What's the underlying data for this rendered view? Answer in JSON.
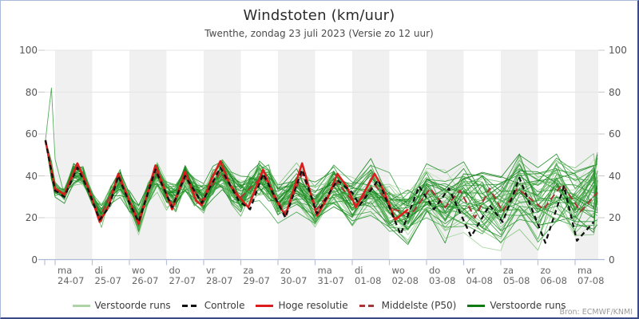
{
  "header": {
    "title": "Windstoten (km/uur)",
    "subtitle": "Twenthe, zondag 23 juli 2023 (Versie zo 12 uur)"
  },
  "source_label": "Bron: ECMWF/KNMI",
  "colors": {
    "band": "#f0f0f0",
    "grid": "#e4e4e4",
    "axis": "#aebad6",
    "tick": "#b8c2da",
    "ytick": "#c9c9c9",
    "control": "#111111",
    "hres": "#dd1d1d",
    "p50": "#a93535",
    "green_light_legend": "#aed3a5",
    "green_dark_legend": "#107a12"
  },
  "legend": [
    {
      "label": "Verstoorde runs",
      "color": "#aed3a5",
      "style": "solid"
    },
    {
      "label": "Controle",
      "color": "#111111",
      "style": "dashed"
    },
    {
      "label": "Hoge resolutie",
      "color": "#dd1d1d",
      "style": "solid"
    },
    {
      "label": "Middelste (P50)",
      "color": "#a93535",
      "style": "dashed"
    },
    {
      "label": "Verstoorde runs",
      "color": "#107a12",
      "style": "solid"
    }
  ],
  "chart_data": {
    "type": "line",
    "title": "Windstoten (km/uur)",
    "subtitle": "Twenthe, zondag 23 juli 2023 (Versie zo 12 uur)",
    "ylabel": "",
    "ylim": [
      0,
      100
    ],
    "yticks": [
      0,
      20,
      40,
      60,
      80,
      100
    ],
    "grid": true,
    "legend_position": "bottom",
    "x_axis": {
      "unit": "days from 24-07 00:00, forecast start 23-07 ~18:00",
      "tick_labels": [
        {
          "dow": "ma",
          "date": "24-07"
        },
        {
          "dow": "di",
          "date": "25-07"
        },
        {
          "dow": "wo",
          "date": "26-07"
        },
        {
          "dow": "do",
          "date": "27-07"
        },
        {
          "dow": "vr",
          "date": "28-07"
        },
        {
          "dow": "za",
          "date": "29-07"
        },
        {
          "dow": "zo",
          "date": "30-07"
        },
        {
          "dow": "ma",
          "date": "31-07"
        },
        {
          "dow": "di",
          "date": "01-08"
        },
        {
          "dow": "wo",
          "date": "02-08"
        },
        {
          "dow": "do",
          "date": "03-08"
        },
        {
          "dow": "vr",
          "date": "04-08"
        },
        {
          "dow": "za",
          "date": "05-08"
        },
        {
          "dow": "zo",
          "date": "06-08"
        },
        {
          "dow": "ma",
          "date": "07-08"
        }
      ]
    },
    "series": [
      {
        "name": "Controle",
        "color": "#111111",
        "dash": "6 4.5",
        "width": 2.3,
        "points": [
          [
            -0.26,
            57
          ],
          [
            0,
            33
          ],
          [
            0.25,
            30
          ],
          [
            0.6,
            44
          ],
          [
            0.9,
            33
          ],
          [
            1.2,
            19
          ],
          [
            1.45,
            25
          ],
          [
            1.7,
            40
          ],
          [
            2,
            27
          ],
          [
            2.25,
            18
          ],
          [
            2.7,
            43
          ],
          [
            3.15,
            25
          ],
          [
            3.5,
            40
          ],
          [
            3.95,
            27
          ],
          [
            4.45,
            44
          ],
          [
            4.95,
            28
          ],
          [
            5.25,
            24
          ],
          [
            5.6,
            41
          ],
          [
            6.2,
            20
          ],
          [
            6.65,
            43
          ],
          [
            7.05,
            22
          ],
          [
            7.6,
            38
          ],
          [
            8,
            32
          ],
          [
            8.2,
            26
          ],
          [
            8.7,
            38
          ],
          [
            9.3,
            12
          ],
          [
            9.8,
            35
          ],
          [
            10.2,
            24
          ],
          [
            10.6,
            34
          ],
          [
            11.2,
            11
          ],
          [
            11.7,
            26
          ],
          [
            12.05,
            18
          ],
          [
            12.5,
            39
          ],
          [
            13.2,
            8
          ],
          [
            13.7,
            35
          ],
          [
            14.05,
            9
          ],
          [
            14.5,
            18
          ]
        ]
      },
      {
        "name": "Hoge resolutie",
        "color": "#dd1d1d",
        "dash": "",
        "width": 2.6,
        "points": [
          [
            -0.26,
            57
          ],
          [
            0,
            34
          ],
          [
            0.25,
            31
          ],
          [
            0.6,
            46
          ],
          [
            0.9,
            34
          ],
          [
            1.2,
            18
          ],
          [
            1.45,
            26
          ],
          [
            1.7,
            41
          ],
          [
            2,
            28
          ],
          [
            2.25,
            17
          ],
          [
            2.7,
            45
          ],
          [
            3.15,
            24
          ],
          [
            3.5,
            42
          ],
          [
            3.8,
            28
          ],
          [
            3.95,
            26
          ],
          [
            4.2,
            38
          ],
          [
            4.45,
            47
          ],
          [
            4.7,
            36
          ],
          [
            4.95,
            30
          ],
          [
            5.2,
            25
          ],
          [
            5.6,
            43
          ],
          [
            5.9,
            30
          ],
          [
            6.2,
            21
          ],
          [
            6.65,
            46
          ],
          [
            7.05,
            21
          ],
          [
            7.35,
            30
          ],
          [
            7.6,
            41
          ],
          [
            7.85,
            35
          ],
          [
            8.1,
            25
          ],
          [
            8.6,
            41
          ],
          [
            8.85,
            33
          ],
          [
            9.15,
            19
          ],
          [
            9.5,
            24
          ]
        ]
      },
      {
        "name": "Middelste (P50)",
        "color": "#a93535",
        "dash": "8 5",
        "width": 2.1,
        "points": [
          [
            -0.26,
            57
          ],
          [
            0,
            34
          ],
          [
            0.25,
            31
          ],
          [
            0.6,
            45
          ],
          [
            0.9,
            34
          ],
          [
            1.2,
            20
          ],
          [
            1.7,
            39
          ],
          [
            2.25,
            19
          ],
          [
            2.7,
            42
          ],
          [
            3.15,
            26
          ],
          [
            3.5,
            39
          ],
          [
            3.95,
            28
          ],
          [
            4.45,
            42
          ],
          [
            4.95,
            29
          ],
          [
            5.6,
            40
          ],
          [
            6.2,
            22
          ],
          [
            6.65,
            41
          ],
          [
            7.05,
            24
          ],
          [
            7.6,
            37
          ],
          [
            8.1,
            26
          ],
          [
            8.6,
            36
          ],
          [
            9.1,
            24
          ],
          [
            9.6,
            22
          ],
          [
            10.1,
            34
          ],
          [
            10.5,
            25
          ],
          [
            10.9,
            33
          ],
          [
            11.3,
            20
          ],
          [
            11.7,
            34
          ],
          [
            12.05,
            23
          ],
          [
            12.45,
            34
          ],
          [
            13.15,
            24
          ],
          [
            13.65,
            36
          ],
          [
            14.15,
            23
          ],
          [
            14.6,
            32
          ]
        ]
      }
    ],
    "ensemble": {
      "name": "Verstoorde runs",
      "count": 48,
      "seed": 20230723,
      "start_value": 57,
      "value_clamp": [
        4,
        82
      ],
      "spread": {
        "start": 2.2,
        "per_day": 1.05
      },
      "spike": {
        "member": 20,
        "t": -0.1,
        "height": 34,
        "width": 0.1
      },
      "light_count": 8,
      "light_palette": [
        "#bfe0b8",
        "#9ed496",
        "#8aca82"
      ],
      "palette": [
        "#7cc276",
        "#55b055",
        "#37a13f",
        "#27962f",
        "#1b8a22",
        "#128017"
      ],
      "width": 0.9,
      "opacity": 0.85
    }
  }
}
